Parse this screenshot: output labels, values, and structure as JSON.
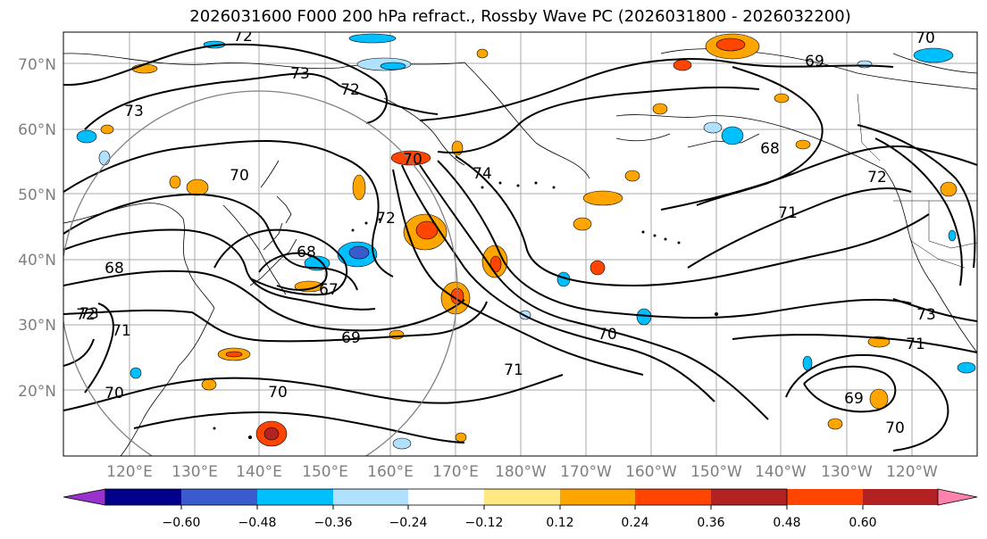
{
  "title": "2026031600 F000 200 hPa refract., Rossby Wave PC (2026031800 - 2026032200)",
  "lat_labels": [
    "70°N",
    "60°N",
    "50°N",
    "40°N",
    "30°N",
    "20°N"
  ],
  "lon_labels": [
    "120°E",
    "130°E",
    "140°E",
    "150°E",
    "160°E",
    "170°E",
    "180°W",
    "170°W",
    "160°W",
    "150°W",
    "140°W",
    "130°W",
    "120°W"
  ],
  "colorbar": {
    "colors": [
      "#9932cc",
      "#00008b",
      "#3a5bcd",
      "#00bfff",
      "#b0e2ff",
      "#ffffff",
      "#ffe784",
      "#ffa500",
      "#ff4500",
      "#b22222",
      "#ff82ab"
    ],
    "tick_labels": [
      "−0.60",
      "−0.48",
      "−0.36",
      "−0.24",
      "−0.12",
      "0.12",
      "0.24",
      "0.36",
      "0.48",
      "0.60"
    ]
  },
  "contour_labels": [
    "72",
    "73",
    "72",
    "73",
    "70",
    "70",
    "68",
    "67",
    "72",
    "74",
    "68",
    "72",
    "73",
    "71",
    "70",
    "69",
    "70",
    "70",
    "71",
    "69",
    "68",
    "71",
    "72",
    "73",
    "71",
    "69",
    "70",
    "70"
  ]
}
